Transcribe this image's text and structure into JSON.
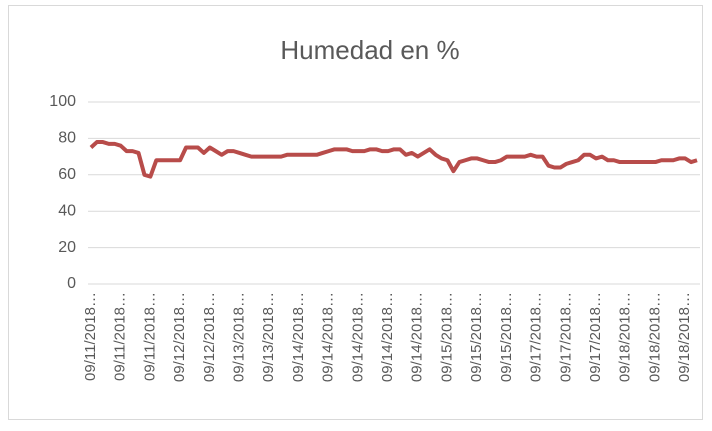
{
  "chart_data": {
    "type": "line",
    "title": "Humedad en %",
    "categories": [
      "09/11/2018…",
      null,
      null,
      null,
      null,
      "09/11/2018…",
      null,
      null,
      null,
      null,
      "09/11/2018…",
      null,
      null,
      null,
      null,
      "09/12/2018…",
      null,
      null,
      null,
      null,
      "09/12/2018…",
      null,
      null,
      null,
      null,
      "09/13/2018…",
      null,
      null,
      null,
      null,
      "09/13/2018…",
      null,
      null,
      null,
      null,
      "09/14/2018…",
      null,
      null,
      null,
      null,
      "09/14/2018…",
      null,
      null,
      null,
      null,
      "09/14/2018…",
      null,
      null,
      null,
      null,
      "09/14/2018…",
      null,
      null,
      null,
      null,
      "09/14/2018…",
      null,
      null,
      null,
      null,
      "09/15/2018…",
      null,
      null,
      null,
      null,
      "09/15/2018…",
      null,
      null,
      null,
      null,
      "09/15/2018…",
      null,
      null,
      null,
      null,
      "09/17/2018…",
      null,
      null,
      null,
      null,
      "09/17/2018…",
      null,
      null,
      null,
      null,
      "09/17/2018…",
      null,
      null,
      null,
      null,
      "09/18/2018…",
      null,
      null,
      null,
      null,
      "09/18/2018…",
      null,
      null,
      null,
      null,
      "09/18/2018…",
      null,
      null
    ],
    "series": [
      {
        "color": "#b84c4a",
        "values": [
          75,
          78,
          78,
          77,
          77,
          76,
          73,
          73,
          72,
          60,
          59,
          68,
          68,
          68,
          68,
          68,
          75,
          75,
          75,
          72,
          75,
          73,
          71,
          73,
          73,
          72,
          71,
          70,
          70,
          70,
          70,
          70,
          70,
          71,
          71,
          71,
          71,
          71,
          71,
          72,
          73,
          74,
          74,
          74,
          73,
          73,
          73,
          74,
          74,
          73,
          73,
          74,
          74,
          71,
          72,
          70,
          72,
          74,
          71,
          69,
          68,
          62,
          67,
          68,
          69,
          69,
          68,
          67,
          67,
          68,
          70,
          70,
          70,
          70,
          71,
          70,
          70,
          65,
          64,
          64,
          66,
          67,
          68,
          71,
          71,
          69,
          70,
          68,
          68,
          67,
          67,
          67,
          67,
          67,
          67,
          67,
          68,
          68,
          68,
          69,
          69,
          67,
          68
        ]
      }
    ],
    "ylim": [
      0,
      100
    ],
    "yticks": [
      0,
      20,
      40,
      60,
      80,
      100
    ],
    "grid": true
  }
}
